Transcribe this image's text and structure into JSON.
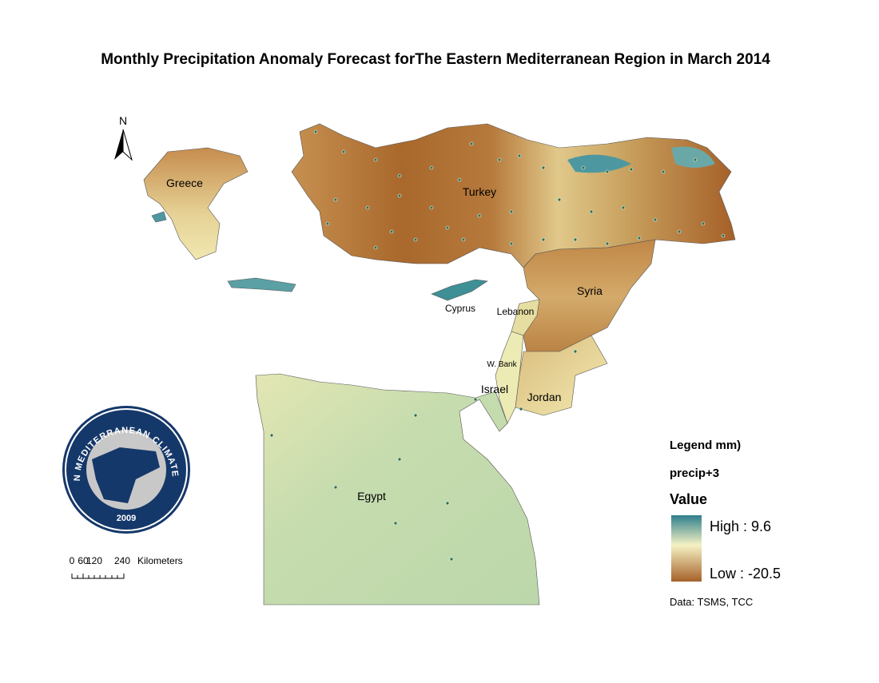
{
  "title": "Monthly Precipitation Anomaly Forecast forThe Eastern Mediterranean Region in March 2014",
  "north": "N",
  "countries": [
    "Greece",
    "Turkey",
    "Cyprus",
    "Lebanon",
    "Syria",
    "W. Bank",
    "Israel",
    "Jordan",
    "Egypt"
  ],
  "logo": {
    "name": "EASTERN MEDITERRANEAN CLIMATE CENTRE",
    "year": "2009"
  },
  "scale_bar": {
    "labels": [
      "0",
      "60",
      "120",
      "240"
    ],
    "unit": "Kilometers"
  },
  "legend": {
    "title": "Legend mm)",
    "layer": "precip+3",
    "field": "Value",
    "high": "High : 9.6",
    "low": "Low : -20.5"
  },
  "source": "Data:  TSMS, TCC"
}
